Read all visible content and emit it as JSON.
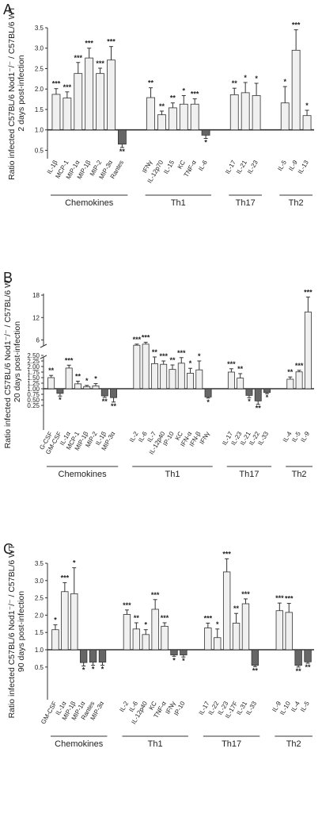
{
  "colors": {
    "up": "#f0f0f0",
    "down": "#666666",
    "stroke": "#333333"
  },
  "chart_data": [
    {
      "panel_letter": "A",
      "type": "bar",
      "ylabel": [
        "Ratio infected C57BL/6 Nod1⁻/⁻ / C57BL/6 WT",
        "2 days post-infection"
      ],
      "ylim": [
        0,
        3.5
      ],
      "yticks": [
        "0.5",
        "1.0",
        "1.5",
        "2.0",
        "2.5",
        "3.0",
        "3.5"
      ],
      "categories": [
        "IL-1β",
        "MCP-1",
        "MIP-1α",
        "MIP-1β",
        "MIP-2",
        "MIP-3α",
        "Rantes",
        "IFNγ",
        "IL-12p70",
        "IL-15",
        "KC",
        "TNF-α",
        "IL-6",
        "IL-17",
        "IL-21",
        "IL-23",
        "IL-5",
        "IL-9",
        "IL-13"
      ],
      "values": [
        1.87,
        1.78,
        2.38,
        2.76,
        2.38,
        2.71,
        0.65,
        1.79,
        1.37,
        1.54,
        1.63,
        1.63,
        0.87,
        1.86,
        1.91,
        1.84,
        1.66,
        2.95,
        1.35
      ],
      "errors": [
        0.14,
        0.15,
        0.27,
        0.24,
        0.13,
        0.33,
        0.08,
        0.24,
        0.09,
        0.12,
        0.21,
        0.13,
        0.08,
        0.16,
        0.25,
        0.3,
        0.4,
        0.5,
        0.13
      ],
      "significance": [
        "***",
        "***",
        "***",
        "***",
        "***",
        "***",
        "**",
        "**",
        "**",
        "**",
        "*",
        "***",
        "*",
        "**",
        "*",
        "*",
        "*",
        "***",
        "*"
      ],
      "groups": [
        {
          "label": "Chemokines",
          "start": 0,
          "end": 6
        },
        {
          "label": "Th1",
          "start": 7,
          "end": 12
        },
        {
          "label": "Th17",
          "start": 13,
          "end": 15
        },
        {
          "label": "Th2",
          "start": 16,
          "end": 18
        }
      ]
    },
    {
      "panel_letter": "B",
      "type": "bar",
      "ylabel": [
        "Ratio infected C57BL/6 Nod1⁻/⁻ / C57BL/6 WT",
        "20 days post-infection"
      ],
      "axis_break": [
        2.5,
        4
      ],
      "ylim": [
        0,
        18
      ],
      "yticks": [
        "0.25",
        "0.50",
        "0.75",
        "1.00",
        "1.25",
        "1.50",
        "1.75",
        "2.00",
        "2.25",
        "2.50",
        "6",
        "12",
        "18"
      ],
      "categories": [
        "G-CSF",
        "GM-CSF",
        "IL-1α",
        "MCP-1",
        "MIP-1β",
        "MIP-2",
        "IL-1β",
        "MIP-3α",
        "IL-2",
        "IL-6",
        "IL-7",
        "IL-12p40",
        "IP-10",
        "KC",
        "IFN-α",
        "IFN-β",
        "IFNγ",
        "IL-17",
        "IL-23",
        "IL-21",
        "IL-22",
        "IL-33",
        "IL-4",
        "IL-5",
        "IL-9"
      ],
      "values": [
        1.5,
        0.79,
        1.93,
        1.22,
        1.1,
        1.13,
        0.68,
        0.6,
        4.6,
        4.9,
        2.13,
        2.1,
        1.87,
        2.15,
        1.7,
        1.85,
        0.63,
        1.75,
        1.48,
        0.7,
        0.45,
        0.83,
        1.43,
        1.76,
        13.5
      ],
      "errors": [
        0.1,
        0.12,
        0.13,
        0.12,
        0.05,
        0.1,
        0.07,
        0.2,
        0.3,
        0.5,
        0.3,
        0.15,
        0.2,
        0.25,
        0.22,
        0.4,
        0.05,
        0.15,
        0.2,
        0.1,
        0.15,
        0.05,
        0.1,
        0.07,
        4.0
      ],
      "significance": [
        "**",
        "*",
        "***",
        "**",
        "*",
        "*",
        "**",
        "**",
        "***",
        "***",
        "**",
        "***",
        "**",
        "***",
        "*",
        "*",
        "*",
        "***",
        "**",
        "*",
        "**",
        "*",
        "**",
        "***",
        "***"
      ],
      "groups": [
        {
          "label": "Chemokines",
          "start": 0,
          "end": 7
        },
        {
          "label": "Th1",
          "start": 8,
          "end": 16
        },
        {
          "label": "Th17",
          "start": 17,
          "end": 21
        },
        {
          "label": "Th2",
          "start": 22,
          "end": 24
        }
      ]
    },
    {
      "panel_letter": "C",
      "type": "bar",
      "ylabel": [
        "Ratio infected C57BL/6 Nod1⁻/⁻ / C57BL/6 WT",
        "90 days post-infection"
      ],
      "ylim": [
        0,
        3.5
      ],
      "yticks": [
        "0.5",
        "1.0",
        "1.5",
        "2.0",
        "2.5",
        "3.0",
        "3.5"
      ],
      "categories": [
        "GM-CSF",
        "IL-1α",
        "MIP-1β",
        "MIP-1α",
        "Rantes",
        "MIP-3α",
        "IL-2",
        "IL-6",
        "IL-12p40",
        "KC",
        "TNF-α",
        "IFNγ",
        "IP-10",
        "IL-17",
        "IL-22",
        "IL-23",
        "IL-17F",
        "IL-31",
        "IL-33",
        "IL-9",
        "IL-10",
        "IL-4",
        "IL-5"
      ],
      "values": [
        1.58,
        2.68,
        2.62,
        0.63,
        0.64,
        0.64,
        2.02,
        1.6,
        1.44,
        2.17,
        1.68,
        0.85,
        0.85,
        1.63,
        1.35,
        3.25,
        1.77,
        2.33,
        0.55,
        2.13,
        2.08,
        0.55,
        0.65
      ],
      "errors": [
        0.14,
        0.26,
        0.75,
        0.1,
        0.09,
        0.09,
        0.13,
        0.18,
        0.14,
        0.28,
        0.1,
        0.04,
        0.06,
        0.14,
        0.25,
        0.38,
        0.28,
        0.14,
        0.04,
        0.22,
        0.26,
        0.05,
        0.04
      ],
      "significance": [
        "*",
        "***",
        "*",
        "*",
        "*",
        "*",
        "***",
        "**",
        "*",
        "***",
        "***",
        "*",
        "*",
        "***",
        "*",
        "***",
        "**",
        "***",
        "**",
        "***",
        "***",
        "**",
        "**"
      ],
      "groups": [
        {
          "label": "Chemokines",
          "start": 0,
          "end": 5
        },
        {
          "label": "Th1",
          "start": 6,
          "end": 12
        },
        {
          "label": "Th17",
          "start": 13,
          "end": 18
        },
        {
          "label": "Th2",
          "start": 19,
          "end": 22
        }
      ]
    }
  ]
}
